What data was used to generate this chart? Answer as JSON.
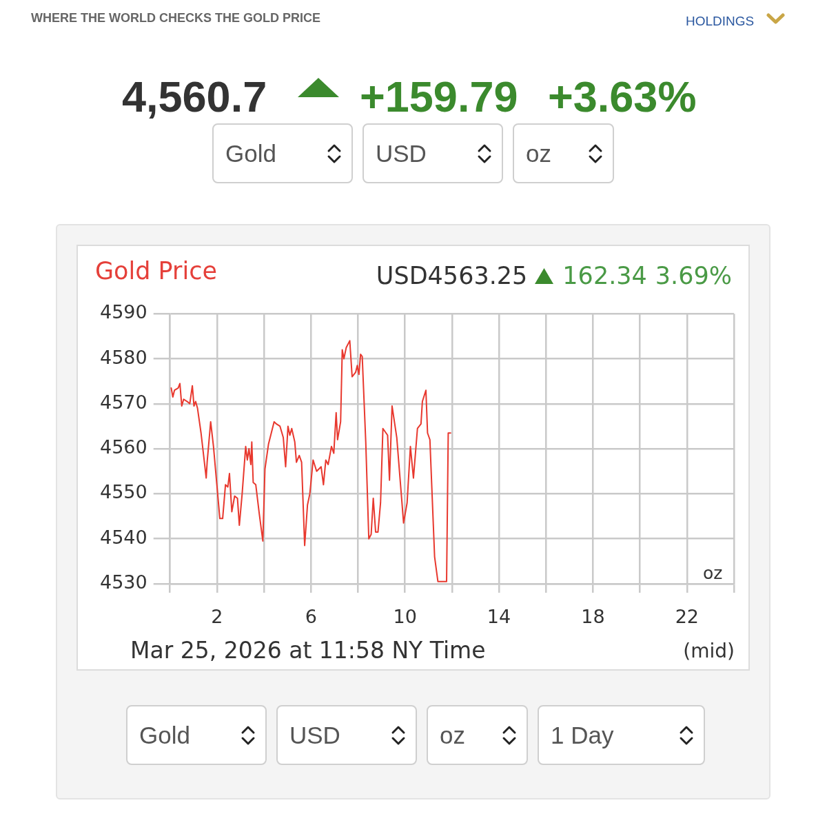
{
  "chart_data": {
    "type": "line",
    "title": "Gold Price",
    "subtitle": "USD4563.25",
    "x": [
      0.05,
      0.12,
      0.19,
      0.35,
      0.42,
      0.5,
      0.58,
      0.73,
      0.84,
      0.95,
      1.02,
      1.09,
      1.17,
      1.32,
      1.54,
      1.58,
      1.73,
      1.85,
      2.12,
      2.24,
      2.36,
      2.46,
      2.53,
      2.63,
      2.75,
      2.87,
      2.95,
      3.07,
      3.22,
      3.29,
      3.36,
      3.44,
      3.48,
      3.54,
      3.65,
      3.8,
      3.95,
      4.04,
      4.19,
      4.43,
      4.53,
      4.68,
      4.82,
      4.92,
      5.02,
      5.1,
      5.18,
      5.31,
      5.38,
      5.5,
      5.6,
      5.73,
      5.85,
      5.95,
      6.09,
      6.24,
      6.43,
      6.53,
      6.63,
      6.73,
      6.87,
      6.97,
      7.07,
      7.13,
      7.26,
      7.33,
      7.4,
      7.5,
      7.65,
      7.75,
      7.9,
      7.97,
      8.04,
      8.11,
      8.18,
      8.33,
      8.46,
      8.56,
      8.65,
      8.75,
      8.85,
      8.96,
      9.06,
      9.26,
      9.34,
      9.45,
      9.65,
      9.94,
      10.09,
      10.23,
      10.36,
      10.53,
      10.68,
      10.74,
      10.89,
      10.96,
      11.06,
      11.26,
      11.4,
      11.77,
      11.84,
      11.94
    ],
    "values": [
      4573.5,
      4571.5,
      4573,
      4573.5,
      4574.5,
      4569.5,
      4571,
      4570.5,
      4570,
      4574,
      4569.5,
      4570.5,
      4569,
      4563.5,
      4553.5,
      4557,
      4566,
      4560.5,
      4544.5,
      4544.5,
      4552,
      4551.5,
      4554.5,
      4546,
      4549.5,
      4549,
      4543,
      4550,
      4560.5,
      4557.5,
      4560,
      4556.5,
      4561.5,
      4552.5,
      4552,
      4545.5,
      4539.5,
      4555.5,
      4561,
      4566,
      4565.5,
      4565,
      4562.5,
      4556,
      4565,
      4563,
      4564.5,
      4561.5,
      4557,
      4558.5,
      4557,
      4538.5,
      4547.5,
      4550,
      4557.5,
      4555,
      4556,
      4552,
      4557.5,
      4556.5,
      4560.5,
      4559,
      4568,
      4562,
      4566,
      4582,
      4580,
      4582.5,
      4584,
      4576,
      4577,
      4578.5,
      4576.5,
      4581,
      4580.5,
      4561.5,
      4540,
      4541,
      4549,
      4541.5,
      4541.5,
      4548,
      4564.5,
      4563,
      4553,
      4569.5,
      4562.5,
      4543.5,
      4548,
      4560.5,
      4553.5,
      4564.5,
      4565.5,
      4570.5,
      4573,
      4563.5,
      4562,
      4536,
      4530.5,
      4530.5,
      4563.5,
      4563.5
    ],
    "color": "#e8382e",
    "xlim": [
      0,
      24
    ],
    "xticks": [
      {
        "value": 0,
        "label": null
      },
      2,
      {
        "value": 4,
        "label": null
      },
      6,
      {
        "value": 8,
        "label": null
      },
      10,
      {
        "value": 12,
        "label": null
      },
      14,
      {
        "value": 16,
        "label": null
      },
      18,
      {
        "value": 20,
        "label": null
      },
      22,
      {
        "value": 24,
        "label": null
      }
    ],
    "ylim": [
      4530,
      4590
    ],
    "yticks": [
      4530,
      4540,
      4550,
      4560,
      4570,
      4580,
      4590
    ],
    "grid": true,
    "marker": "none",
    "line_style": "solid",
    "annotations": [
      "WHERE THE WORLD CHECKS THE GOLD PRICE",
      "HOLDINGS",
      "4,560.7",
      "+159.79",
      "+3.63%",
      "Gold",
      "USD",
      "oz",
      "162.34",
      "3.69%",
      "oz",
      "Mar 25, 2026 at 11:58 NY Time",
      "(mid)",
      "Gold",
      "USD",
      "oz",
      "1 Day"
    ]
  }
}
